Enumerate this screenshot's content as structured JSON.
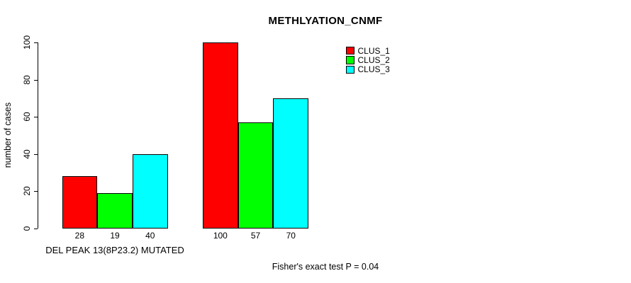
{
  "chart_data": {
    "type": "bar",
    "title": "METHLYATION_CNMF",
    "ylabel": "number of cases",
    "xlabel": "",
    "ylim": [
      0,
      100
    ],
    "yticks": [
      0,
      20,
      40,
      60,
      80,
      100
    ],
    "grid": false,
    "legend_position": "top-right",
    "groups": [
      {
        "label": "DEL PEAK 13(8P23.2) MUTATED"
      },
      {
        "label": ""
      }
    ],
    "series": [
      {
        "name": "CLUS_1",
        "color": "#ff0000",
        "values": [
          28,
          100
        ]
      },
      {
        "name": "CLUS_2",
        "color": "#00ff00",
        "values": [
          19,
          57
        ]
      },
      {
        "name": "CLUS_3",
        "color": "#00ffff",
        "values": [
          40,
          70
        ]
      }
    ],
    "bar_value_labels": [
      [
        "28",
        "19",
        "40"
      ],
      [
        "100",
        "57",
        "70"
      ]
    ],
    "annotation": "Fisher's exact test P = 0.04",
    "axis_color": "#000000",
    "background_color": "#ffffff"
  }
}
